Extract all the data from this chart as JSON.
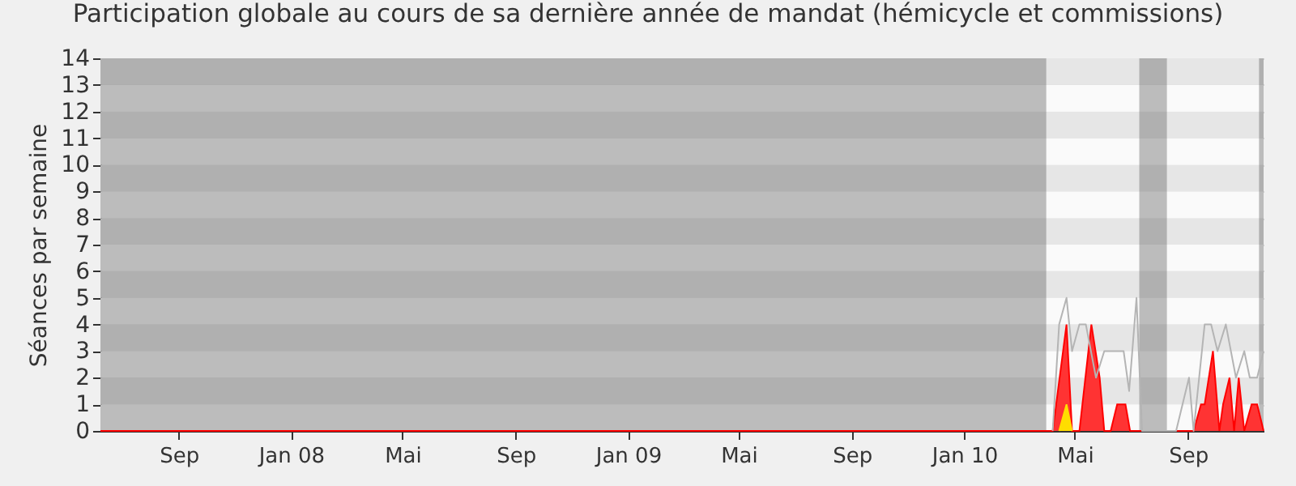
{
  "chart_data": {
    "type": "area",
    "title": "Participation globale au cours de sa dernière année de mandat (hémicycle et commissions)",
    "ylabel": "Séances par semaine",
    "xlim": [
      "2007-06-08",
      "2010-11-22"
    ],
    "ylim": [
      0,
      14
    ],
    "yticks": [
      0,
      1,
      2,
      3,
      4,
      5,
      6,
      7,
      8,
      9,
      10,
      11,
      12,
      13,
      14
    ],
    "xticks": [
      {
        "value": "2007-09-01",
        "label": "Sep"
      },
      {
        "value": "2008-01-01",
        "label": "Jan 08"
      },
      {
        "value": "2008-05-01",
        "label": "Mai"
      },
      {
        "value": "2008-09-01",
        "label": "Sep"
      },
      {
        "value": "2009-01-01",
        "label": "Jan 09"
      },
      {
        "value": "2009-05-01",
        "label": "Mai"
      },
      {
        "value": "2009-09-01",
        "label": "Sep"
      },
      {
        "value": "2010-01-01",
        "label": "Jan 10"
      },
      {
        "value": "2010-05-01",
        "label": "Mai"
      },
      {
        "value": "2010-09-01",
        "label": "Sep"
      }
    ],
    "grid": "y",
    "bands": [
      {
        "axis": "x",
        "from": "2007-06-08",
        "to": "2010-03-31",
        "label": null,
        "color": "#5f5f5f"
      },
      {
        "axis": "x",
        "from": "2010-07-10",
        "to": "2010-08-09",
        "label": null,
        "color": "#5f5f5f"
      },
      {
        "axis": "x",
        "from": "2010-11-17",
        "to": "2010-11-22",
        "label": null,
        "color": "#5f5f5f"
      }
    ],
    "series": [
      {
        "type": "area",
        "color": "#ff3333",
        "x": [
          "2007-06-08",
          "2010-04-07",
          "2010-04-22",
          "2010-04-28",
          "2010-05-06",
          "2010-05-19",
          "2010-05-28",
          "2010-06-02",
          "2010-06-09",
          "2010-06-16",
          "2010-06-25",
          "2010-06-30",
          "2010-09-07",
          "2010-09-15",
          "2010-09-19",
          "2010-09-28",
          "2010-10-05",
          "2010-10-09",
          "2010-10-16",
          "2010-10-21",
          "2010-10-26",
          "2010-11-01",
          "2010-11-09",
          "2010-11-15",
          "2010-11-22"
        ],
        "values": [
          0,
          0,
          4,
          0,
          0,
          4,
          2,
          0,
          0,
          1,
          1,
          0,
          0,
          1,
          1,
          3,
          0,
          1,
          2,
          0,
          2,
          0,
          1,
          1,
          0
        ]
      },
      {
        "type": "area",
        "color": "#ffdd00",
        "x": [
          "2010-04-14",
          "2010-04-22",
          "2010-04-28"
        ],
        "values": [
          0,
          1,
          0
        ]
      },
      {
        "type": "line",
        "color": "#b4b4b4",
        "x": [
          "2010-04-07",
          "2010-04-14",
          "2010-04-22",
          "2010-04-28",
          "2010-05-06",
          "2010-05-13",
          "2010-05-24",
          "2010-06-02",
          "2010-06-23",
          "2010-06-29",
          "2010-07-07",
          "2010-07-13",
          "2010-08-19",
          "2010-09-02",
          "2010-09-07",
          "2010-09-19",
          "2010-09-26",
          "2010-10-03",
          "2010-10-12",
          "2010-10-23",
          "2010-11-01",
          "2010-11-07",
          "2010-11-15",
          "2010-11-22"
        ],
        "values": [
          0,
          4,
          5,
          3,
          4,
          4,
          2,
          3,
          3,
          1.5,
          5,
          0,
          0,
          2,
          0,
          4,
          4,
          3,
          4,
          2,
          3,
          2,
          2,
          3
        ]
      }
    ]
  }
}
